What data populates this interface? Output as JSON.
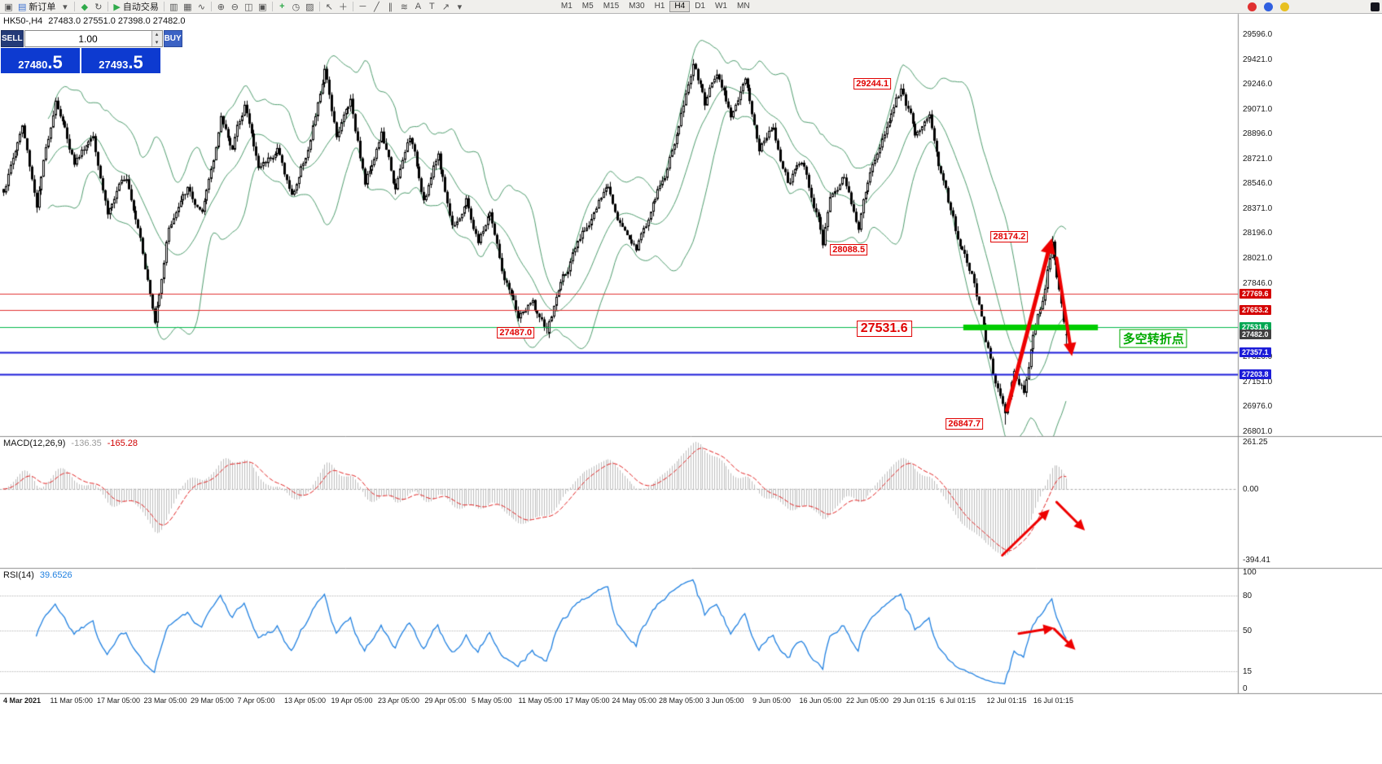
{
  "toolbar": {
    "new_order_label": "新订单",
    "auto_trading_label": "自动交易",
    "timeframes": [
      "M1",
      "M5",
      "M15",
      "M30",
      "H1",
      "H4",
      "D1",
      "W1",
      "MN"
    ],
    "active_timeframe": "H4"
  },
  "chart_header": {
    "symbol": "HK50-,H4",
    "ohlc": "27483.0 27551.0 27398.0 27482.0"
  },
  "one_click": {
    "sell_label": "SELL",
    "buy_label": "BUY",
    "volume": "1.00",
    "sell_price_base": "27480",
    "sell_price_frac": ".5",
    "buy_price_base": "27493",
    "buy_price_frac": ".5"
  },
  "price_axis": {
    "plain_ticks": [
      29596.0,
      29421.0,
      29246.0,
      29071.0,
      28896.0,
      28721.0,
      28546.0,
      28371.0,
      28196.0,
      28021.0,
      27846.0,
      27326.0,
      27151.0,
      26976.0,
      26801.0
    ],
    "badges": [
      {
        "value": "27769.6",
        "price": 27769.6,
        "color": "#d40000"
      },
      {
        "value": "27653.2",
        "price": 27653.2,
        "color": "#d40000"
      },
      {
        "value": "27531.6",
        "price": 27531.6,
        "color": "#00a651"
      },
      {
        "value": "27482.0",
        "price": 27482.0,
        "color": "#404040"
      },
      {
        "value": "27357.1",
        "price": 27357.1,
        "color": "#1c1cd8"
      },
      {
        "value": "27203.8",
        "price": 27203.8,
        "color": "#1c1cd8"
      }
    ]
  },
  "macd_panel": {
    "label": "MACD(12,26,9)",
    "value": "-136.35",
    "signal": "-165.28",
    "axis_ticks": [
      "261.25",
      "0.00",
      "-394.41"
    ],
    "axis_values": [
      261.25,
      0,
      -394.41
    ],
    "histogram_color": "#bdbdbd",
    "signal_color": "#e02020"
  },
  "rsi_panel": {
    "label": "RSI(14)",
    "value": "39.6526",
    "axis_ticks": [
      100,
      80,
      50,
      15,
      0
    ],
    "levels": [
      80,
      50,
      15
    ],
    "line_color": "#2080e0"
  },
  "time_axis": {
    "ticks": [
      "4 Mar 2021",
      "11 Mar 05:00",
      "17 Mar 05:00",
      "23 Mar 05:00",
      "29 Mar 05:00",
      "7 Apr 05:00",
      "13 Apr 05:00",
      "19 Apr 05:00",
      "23 Apr 05:00",
      "29 Apr 05:00",
      "5 May 05:00",
      "11 May 05:00",
      "17 May 05:00",
      "24 May 05:00",
      "28 May 05:00",
      "3 Jun 05:00",
      "9 Jun 05:00",
      "16 Jun 05:00",
      "22 Jun 05:00",
      "29 Jun 01:15",
      "6 Jul 01:15",
      "12 Jul 01:15",
      "16 Jul 01:15"
    ]
  },
  "chart_data": {
    "type": "candlestick",
    "symbol": "HK50",
    "timeframe": "H4",
    "current": {
      "open": 27483.0,
      "high": 27551.0,
      "low": 27398.0,
      "close": 27482.0
    },
    "y_range": {
      "top_price": 29596.0,
      "bottom_price": 26801.0
    },
    "bollinger": {
      "period": 20,
      "deviation": 2,
      "color": "#4f9c6e"
    },
    "candle_up_color": "#ffffff",
    "candle_down_color": "#000000",
    "price_anchors": [
      [
        0,
        28500
      ],
      [
        8,
        28950
      ],
      [
        14,
        28400
      ],
      [
        22,
        29150
      ],
      [
        30,
        28700
      ],
      [
        38,
        28900
      ],
      [
        44,
        28350
      ],
      [
        52,
        28600
      ],
      [
        58,
        28200
      ],
      [
        64,
        27560
      ],
      [
        70,
        28250
      ],
      [
        78,
        28500
      ],
      [
        84,
        28300
      ],
      [
        92,
        29000
      ],
      [
        97,
        28800
      ],
      [
        102,
        29120
      ],
      [
        108,
        28650
      ],
      [
        116,
        28800
      ],
      [
        122,
        28450
      ],
      [
        130,
        28850
      ],
      [
        136,
        29330
      ],
      [
        141,
        28900
      ],
      [
        147,
        29150
      ],
      [
        153,
        28550
      ],
      [
        160,
        28900
      ],
      [
        166,
        28500
      ],
      [
        172,
        28880
      ],
      [
        178,
        28450
      ],
      [
        184,
        28750
      ],
      [
        190,
        28250
      ],
      [
        196,
        28420
      ],
      [
        201,
        28120
      ],
      [
        206,
        28350
      ],
      [
        212,
        27850
      ],
      [
        218,
        27600
      ],
      [
        224,
        27700
      ],
      [
        230,
        27490
      ],
      [
        236,
        27850
      ],
      [
        243,
        28100
      ],
      [
        250,
        28350
      ],
      [
        256,
        28520
      ],
      [
        262,
        28250
      ],
      [
        268,
        28100
      ],
      [
        274,
        28350
      ],
      [
        280,
        28600
      ],
      [
        286,
        28950
      ],
      [
        292,
        29400
      ],
      [
        297,
        29100
      ],
      [
        302,
        29350
      ],
      [
        308,
        29050
      ],
      [
        314,
        29250
      ],
      [
        320,
        28800
      ],
      [
        326,
        28950
      ],
      [
        332,
        28550
      ],
      [
        338,
        28700
      ],
      [
        345,
        28300
      ],
      [
        347,
        28120
      ],
      [
        350,
        28450
      ],
      [
        356,
        28600
      ],
      [
        362,
        28260
      ],
      [
        368,
        28700
      ],
      [
        374,
        28950
      ],
      [
        380,
        29220
      ],
      [
        386,
        28900
      ],
      [
        392,
        29000
      ],
      [
        398,
        28550
      ],
      [
        404,
        28150
      ],
      [
        410,
        27900
      ],
      [
        415,
        27500
      ],
      [
        420,
        27150
      ],
      [
        424,
        26880
      ],
      [
        428,
        27200
      ],
      [
        432,
        27100
      ],
      [
        436,
        27500
      ],
      [
        440,
        27750
      ],
      [
        444,
        28150
      ],
      [
        447,
        27800
      ],
      [
        450,
        27482
      ]
    ],
    "extremes": [
      {
        "bar": 230,
        "kind": "low",
        "price": 27487.0
      },
      {
        "bar": 292,
        "kind": "high",
        "price": 29420.0
      },
      {
        "bar": 347,
        "kind": "low",
        "price": 28088.5
      },
      {
        "bar": 380,
        "kind": "high",
        "price": 29244.1
      },
      {
        "bar": 424,
        "kind": "low",
        "price": 26847.7
      },
      {
        "bar": 444,
        "kind": "high",
        "price": 28174.2
      }
    ],
    "hlines": [
      {
        "price": 27769.6,
        "color": "#e03030",
        "width": 1
      },
      {
        "price": 27653.2,
        "color": "#e03030",
        "width": 1
      },
      {
        "price": 27531.6,
        "color": "#00b84a",
        "width": 1
      },
      {
        "price": 27357.1,
        "color": "#1c1cd8",
        "width": 2
      },
      {
        "price": 27203.8,
        "color": "#1c1cd8",
        "width": 2
      }
    ],
    "green_zone": {
      "price": 27531.6,
      "bar_from": 406.5,
      "bar_to": 463.5,
      "color": "#00cc00",
      "thickness": 7
    },
    "annotations": [
      {
        "text": "29244.1",
        "bar": 368,
        "price": 29247,
        "size": "normal"
      },
      {
        "text": "28174.2",
        "bar": 426,
        "price": 28170,
        "size": "normal"
      },
      {
        "text": "28088.5",
        "bar": 358,
        "price": 28078,
        "size": "normal"
      },
      {
        "text": "27531.6",
        "bar": 373,
        "price": 27520,
        "size": "large"
      },
      {
        "text": "27487.0",
        "bar": 217,
        "price": 27492,
        "size": "normal"
      },
      {
        "text": "26847.7",
        "bar": 407,
        "price": 26850,
        "size": "normal"
      }
    ],
    "text_labels": [
      {
        "text": "多空转折点",
        "bar": 487,
        "price": 27454,
        "color": "#00aa00"
      }
    ],
    "arrows": {
      "price": [
        {
          "from_bar": 425,
          "from_price": 26950,
          "to_bar": 444,
          "to_price": 28160,
          "width": 5
        },
        {
          "from_bar": 446,
          "from_price": 28020,
          "to_bar": 452.5,
          "to_price": 27330,
          "width": 4
        }
      ],
      "macd": [
        {
          "from_bar": 423,
          "from_value": -370,
          "to_bar": 443,
          "to_value": -115,
          "width": 3
        },
        {
          "from_bar": 446,
          "from_value": -73,
          "to_bar": 458,
          "to_value": -231,
          "width": 3
        }
      ],
      "rsi": [
        {
          "from_bar": 430,
          "from_value": 47,
          "to_bar": 445,
          "to_value": 52,
          "width": 3
        },
        {
          "from_bar": 445,
          "from_value": 51,
          "to_bar": 454,
          "to_value": 33,
          "width": 3
        }
      ]
    }
  }
}
